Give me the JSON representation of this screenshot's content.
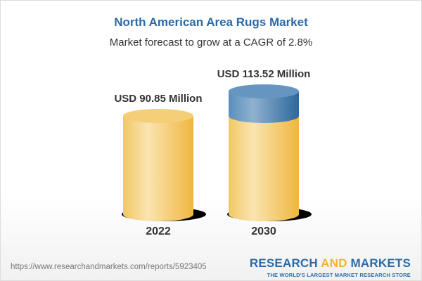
{
  "chart_data": {
    "type": "bar",
    "title": "North American Area Rugs Market",
    "subtitle": "Market forecast to grow at a CAGR of 2.8%",
    "categories": [
      "2022",
      "2030"
    ],
    "values": [
      90.85,
      113.52
    ],
    "data_labels": [
      "USD 90.85 Million",
      "USD 113.52 Million"
    ],
    "style": "3d-cylinder",
    "colors": {
      "base": "#f2c45a",
      "growth": "#4f86b6"
    }
  },
  "footer": {
    "url": "https://www.researchandmarkets.com/reports/5923405",
    "logo_word1": "RESEARCH ",
    "logo_word2": "AND",
    "logo_word3": " MARKETS",
    "logo_tagline": "THE WORLD'S LARGEST MARKET RESEARCH STORE"
  }
}
